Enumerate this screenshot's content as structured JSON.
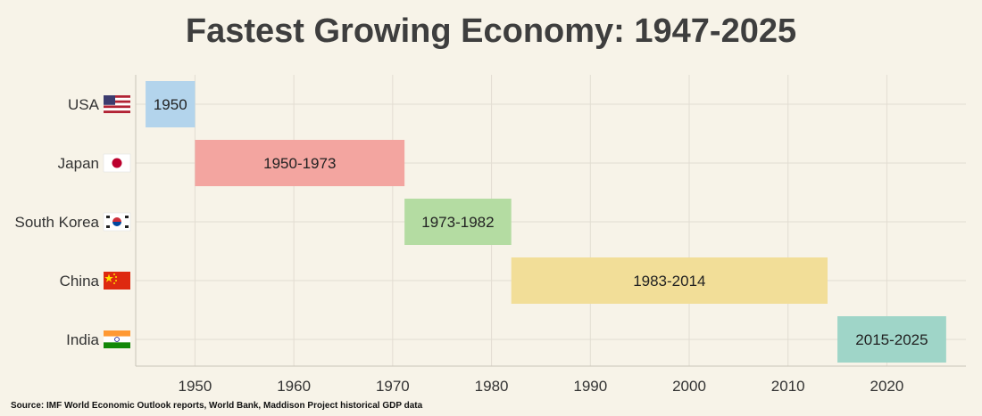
{
  "chart_data": {
    "type": "bar",
    "title": "Fastest Growing Economy: 1947-2025",
    "xlim": [
      1944,
      2028
    ],
    "xticks": [
      1950,
      1960,
      1970,
      1980,
      1990,
      2000,
      2010,
      2020
    ],
    "grid": true,
    "series": [
      {
        "country": "USA",
        "label": "1950",
        "start": 1945,
        "end": 1950,
        "color": "#b3d4ec",
        "flag": "usa-flag-icon"
      },
      {
        "country": "Japan",
        "label": "1950-1973",
        "start": 1950,
        "end": 1971.2,
        "color": "#f3a5a0",
        "flag": "japan-flag-icon"
      },
      {
        "country": "South Korea",
        "label": "1973-1982",
        "start": 1971.2,
        "end": 1982,
        "color": "#b4dca2",
        "flag": "south-korea-flag-icon"
      },
      {
        "country": "China",
        "label": "1983-2014",
        "start": 1982,
        "end": 2014,
        "color": "#f2de98",
        "flag": "china-flag-icon"
      },
      {
        "country": "India",
        "label": "2015-2025",
        "start": 2015,
        "end": 2026,
        "color": "#9fd5c8",
        "flag": "india-flag-icon"
      }
    ]
  },
  "source": "Source: IMF World Economic Outlook reports, World Bank, Maddison Project historical GDP data"
}
